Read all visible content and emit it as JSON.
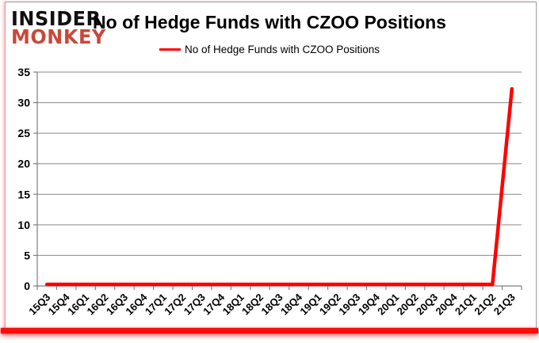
{
  "logo": {
    "line1": "INSIDER",
    "line2": "MONKEY"
  },
  "header": {
    "title": "No of Hedge Funds with CZOO Positions"
  },
  "legend": {
    "label": "No of Hedge Funds with CZOO Positions",
    "line_color": "#ff0000"
  },
  "chart_data": {
    "type": "line",
    "title": "No of Hedge Funds with CZOO Positions",
    "categories": [
      "15Q3",
      "15Q4",
      "16Q1",
      "16Q2",
      "16Q3",
      "16Q4",
      "17Q1",
      "17Q2",
      "17Q3",
      "17Q4",
      "18Q1",
      "18Q2",
      "18Q3",
      "18Q4",
      "19Q1",
      "19Q2",
      "19Q3",
      "19Q4",
      "20Q1",
      "20Q2",
      "20Q3",
      "20Q4",
      "21Q1",
      "21Q2",
      "21Q3"
    ],
    "series": [
      {
        "name": "No of Hedge Funds with CZOO Positions",
        "color": "#ff0000",
        "values": [
          0,
          0,
          0,
          0,
          0,
          0,
          0,
          0,
          0,
          0,
          0,
          0,
          0,
          0,
          0,
          0,
          0,
          0,
          0,
          0,
          0,
          0,
          0,
          0,
          32
        ]
      }
    ],
    "xlabel": "",
    "ylabel": "",
    "ylim": [
      0,
      35
    ],
    "ytick_step": 5,
    "yticks": [
      0,
      5,
      10,
      15,
      20,
      25,
      30,
      35
    ],
    "grid": true,
    "legend_position": "top-center",
    "axis_color": "#7f7f7f",
    "grid_color": "#8a8a8a",
    "x_label_rotation_deg": -45
  }
}
